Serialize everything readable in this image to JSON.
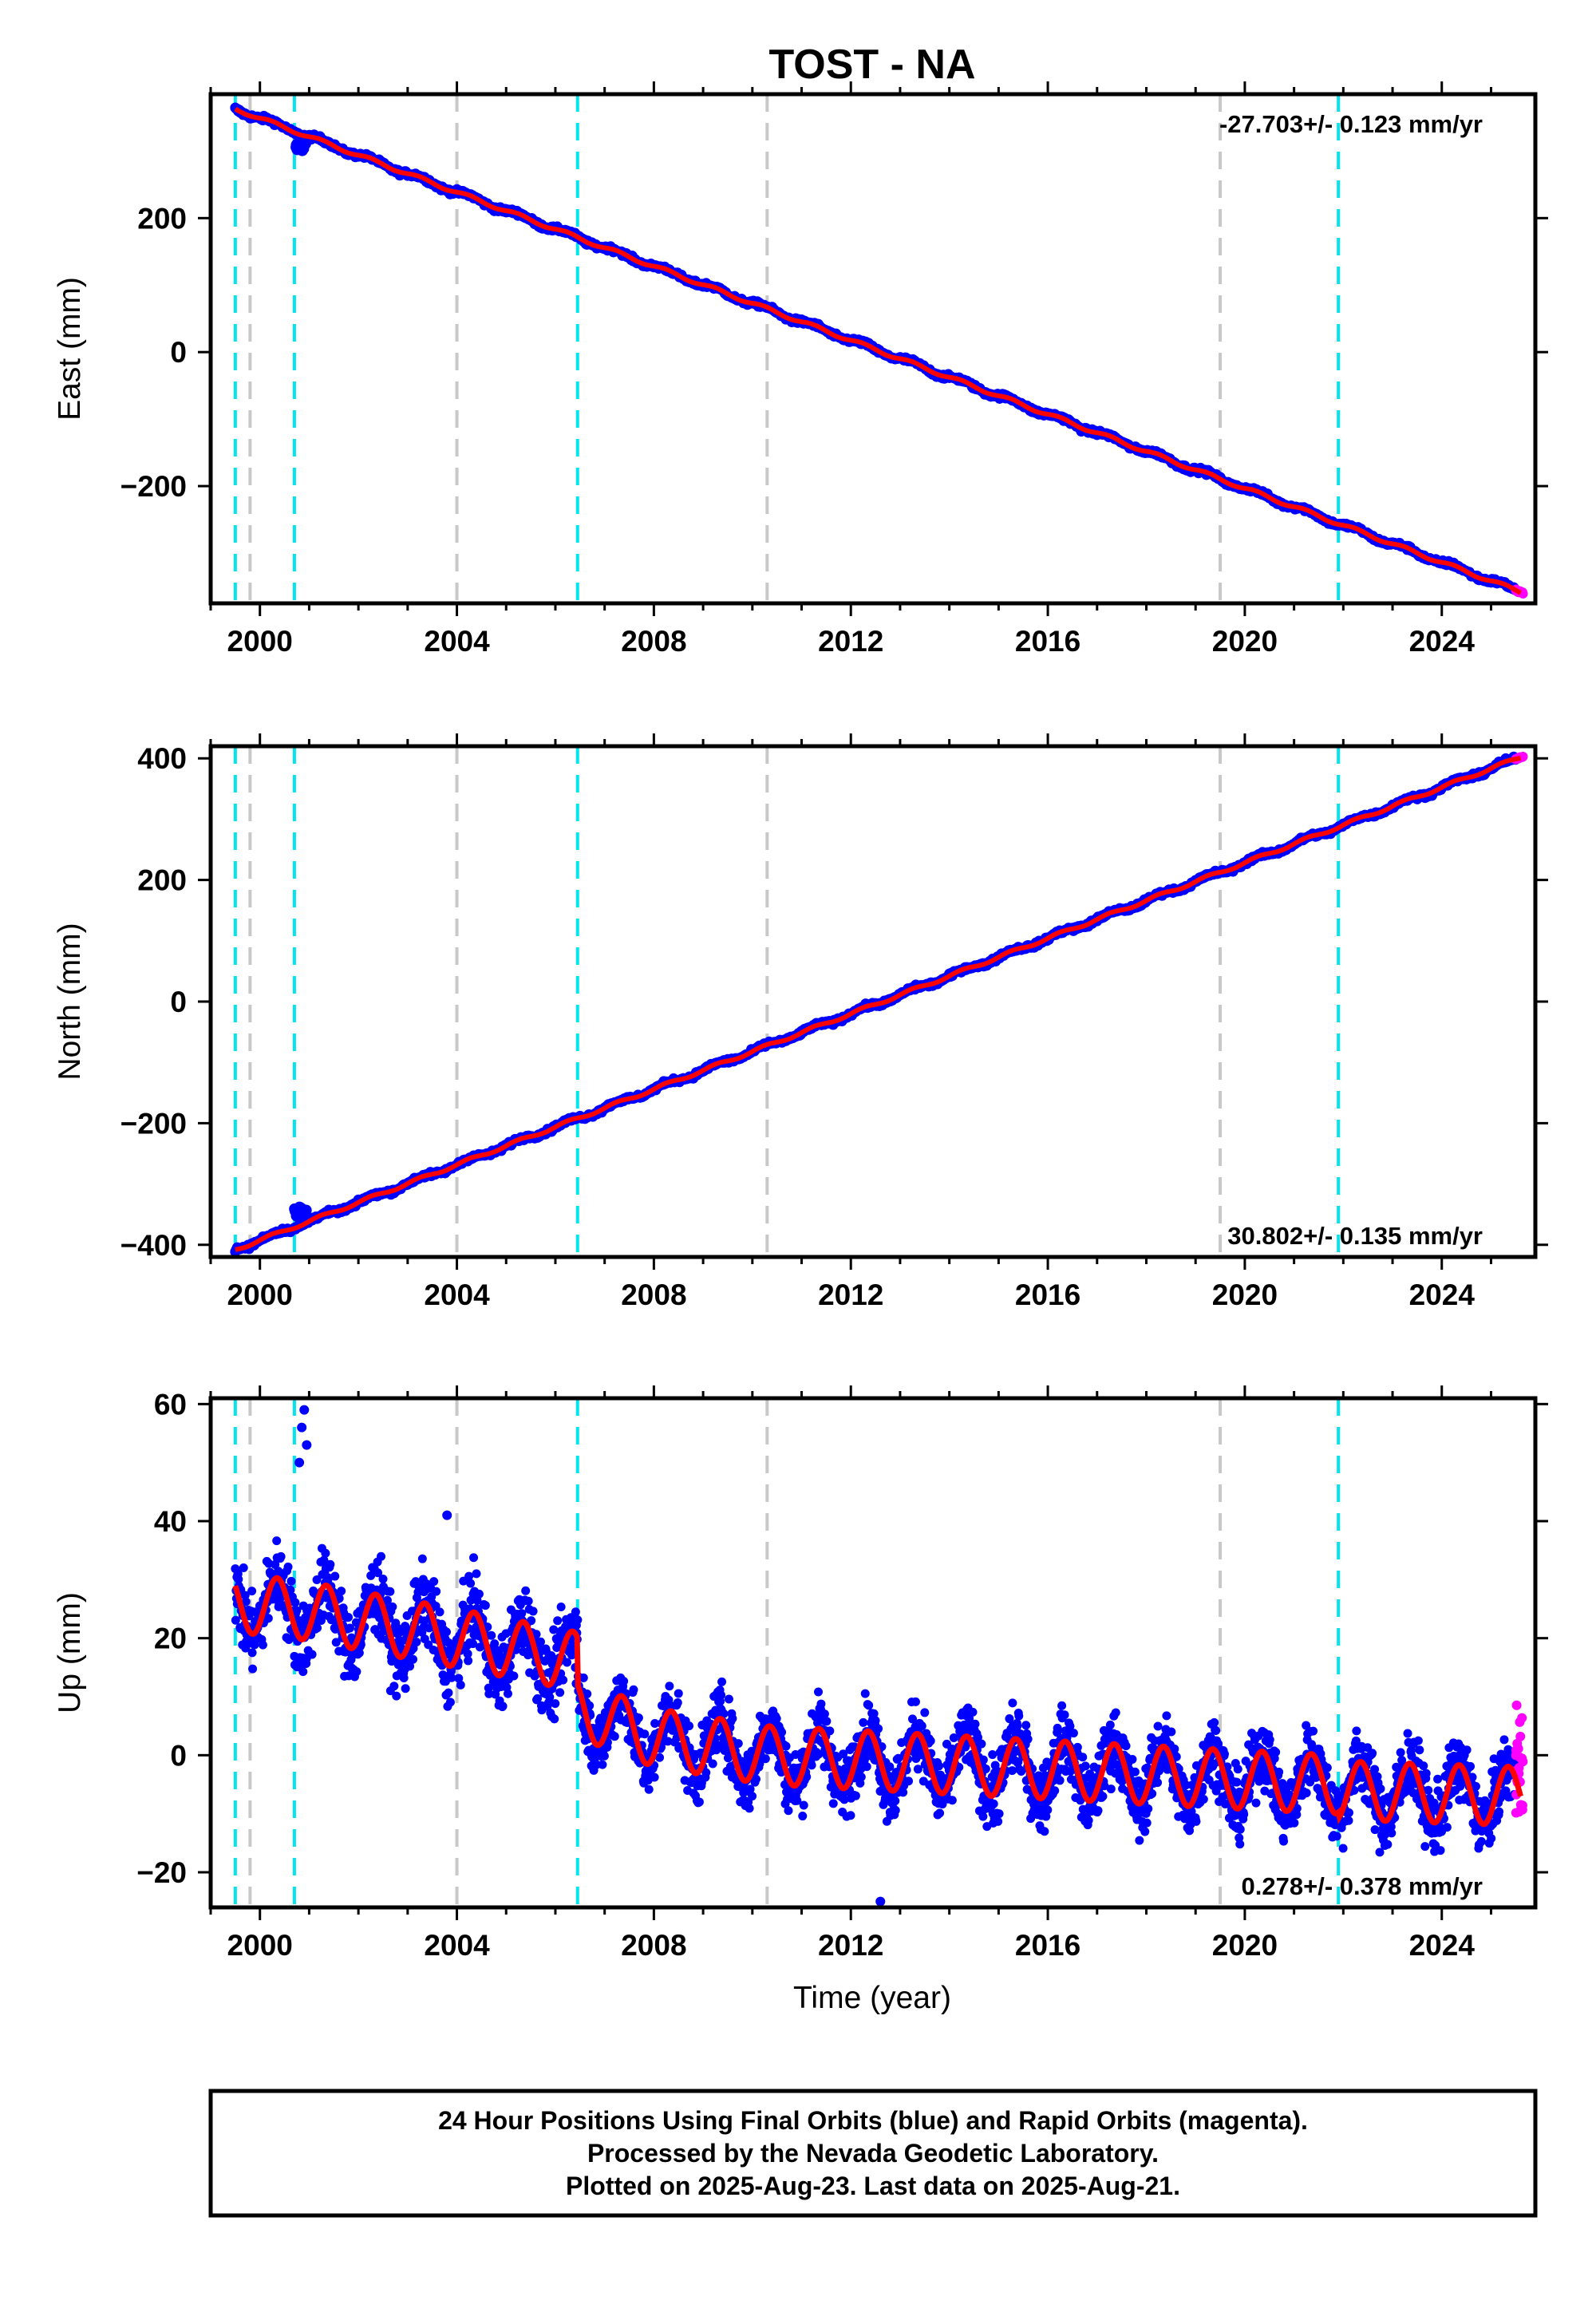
{
  "chart_data": [
    {
      "type": "scatter",
      "title": "TOST - NA",
      "ylabel": "East (mm)",
      "xlabel": "",
      "xlim": [
        1999.0,
        2025.9
      ],
      "ylim": [
        -375,
        385
      ],
      "xticks": [
        "2000",
        "2004",
        "2008",
        "2012",
        "2016",
        "2020",
        "2024"
      ],
      "yticks": [
        "−200",
        "0",
        "200"
      ],
      "rate_label": "-27.703+/- 0.123 mm/yr",
      "rate_position": "top-right",
      "trend": {
        "start": [
          1999.5,
          363
        ],
        "end": [
          2025.6,
          -358
        ],
        "rate_mm_per_yr": -27.703
      },
      "series": [
        {
          "name": "Final Orbits",
          "color": "#0000ff",
          "x_range": [
            1999.5,
            2025.5
          ]
        },
        {
          "name": "Rapid Orbits",
          "color": "#ff00ff",
          "x_range": [
            2025.5,
            2025.65
          ]
        },
        {
          "name": "Model",
          "color": "#ff0000"
        }
      ],
      "offset_events": [
        {
          "x": 2000.7,
          "y": 305
        }
      ],
      "vlines": [
        {
          "x": 1999.5,
          "color": "#00e5ee"
        },
        {
          "x": 1999.8,
          "color": "#c8c8c8"
        },
        {
          "x": 2000.7,
          "color": "#00e5ee"
        },
        {
          "x": 2004.0,
          "color": "#c8c8c8"
        },
        {
          "x": 2006.45,
          "color": "#00e5ee"
        },
        {
          "x": 2010.3,
          "color": "#c8c8c8"
        },
        {
          "x": 2019.5,
          "color": "#c8c8c8"
        },
        {
          "x": 2021.9,
          "color": "#00e5ee"
        }
      ],
      "grid": false
    },
    {
      "type": "scatter",
      "title": "",
      "ylabel": "North (mm)",
      "xlabel": "",
      "xlim": [
        1999.0,
        2025.9
      ],
      "ylim": [
        -420,
        420
      ],
      "xticks": [
        "2000",
        "2004",
        "2008",
        "2012",
        "2016",
        "2020",
        "2024"
      ],
      "yticks": [
        "−400",
        "−200",
        "0",
        "200",
        "400"
      ],
      "rate_label": "30.802+/- 0.135 mm/yr",
      "rate_position": "bottom-right",
      "trend": {
        "start": [
          1999.5,
          -408
        ],
        "end": [
          2025.6,
          402
        ],
        "rate_mm_per_yr": 30.802
      },
      "series": [
        {
          "name": "Final Orbits",
          "color": "#0000ff",
          "x_range": [
            1999.5,
            2025.5
          ]
        },
        {
          "name": "Rapid Orbits",
          "color": "#ff00ff",
          "x_range": [
            2025.5,
            2025.65
          ]
        },
        {
          "name": "Model",
          "color": "#ff0000"
        }
      ],
      "offset_events": [
        {
          "x": 2000.7,
          "y": -345
        }
      ],
      "vlines": [
        {
          "x": 1999.5,
          "color": "#00e5ee"
        },
        {
          "x": 1999.8,
          "color": "#c8c8c8"
        },
        {
          "x": 2000.7,
          "color": "#00e5ee"
        },
        {
          "x": 2004.0,
          "color": "#c8c8c8"
        },
        {
          "x": 2006.45,
          "color": "#00e5ee"
        },
        {
          "x": 2010.3,
          "color": "#c8c8c8"
        },
        {
          "x": 2019.5,
          "color": "#c8c8c8"
        },
        {
          "x": 2021.9,
          "color": "#00e5ee"
        }
      ],
      "grid": false
    },
    {
      "type": "scatter",
      "title": "",
      "ylabel": "Up (mm)",
      "xlabel": "Time (year)",
      "xlim": [
        1999.0,
        2025.9
      ],
      "ylim": [
        -26,
        61
      ],
      "xticks": [
        "2000",
        "2004",
        "2008",
        "2012",
        "2016",
        "2020",
        "2024"
      ],
      "yticks": [
        "−20",
        "0",
        "20",
        "40",
        "60"
      ],
      "rate_label": "0.278+/- 0.378 mm/yr",
      "rate_position": "bottom-right",
      "rate_mm_per_yr": 0.278,
      "seasonal_amplitude_mm": 5,
      "model_levels": [
        {
          "x": 1999.5,
          "y": 26
        },
        {
          "x": 2000.7,
          "y": 25
        },
        {
          "x": 2004.0,
          "y": 20
        },
        {
          "x": 2006.45,
          "y": 16
        },
        {
          "x": 2006.46,
          "y": 8
        },
        {
          "x": 2008.0,
          "y": 3
        },
        {
          "x": 2010.3,
          "y": 0
        },
        {
          "x": 2019.5,
          "y": -4
        },
        {
          "x": 2021.9,
          "y": -5
        },
        {
          "x": 2021.91,
          "y": -6
        },
        {
          "x": 2025.6,
          "y": -7
        }
      ],
      "outliers": [
        {
          "x": 2000.9,
          "y": 59
        },
        {
          "x": 2000.85,
          "y": 56
        },
        {
          "x": 2000.95,
          "y": 53
        },
        {
          "x": 2000.8,
          "y": 50
        },
        {
          "x": 2003.8,
          "y": 41
        },
        {
          "x": 2012.6,
          "y": -25
        }
      ],
      "series": [
        {
          "name": "Final Orbits",
          "color": "#0000ff",
          "x_range": [
            1999.5,
            2025.5
          ]
        },
        {
          "name": "Rapid Orbits",
          "color": "#ff00ff",
          "x_range": [
            2025.5,
            2025.65
          ],
          "y_range": [
            -10,
            10
          ]
        },
        {
          "name": "Model",
          "color": "#ff0000"
        }
      ],
      "vlines": [
        {
          "x": 1999.5,
          "color": "#00e5ee"
        },
        {
          "x": 1999.8,
          "color": "#c8c8c8"
        },
        {
          "x": 2000.7,
          "color": "#00e5ee"
        },
        {
          "x": 2004.0,
          "color": "#c8c8c8"
        },
        {
          "x": 2006.45,
          "color": "#00e5ee"
        },
        {
          "x": 2010.3,
          "color": "#c8c8c8"
        },
        {
          "x": 2019.5,
          "color": "#c8c8c8"
        },
        {
          "x": 2021.9,
          "color": "#00e5ee"
        }
      ],
      "grid": false
    }
  ],
  "footer": {
    "line1": "24 Hour Positions Using Final Orbits (blue) and Rapid Orbits (magenta).",
    "line2": "Processed by the Nevada Geodetic Laboratory.",
    "line3": "Plotted on 2025-Aug-23. Last data on 2025-Aug-21."
  }
}
